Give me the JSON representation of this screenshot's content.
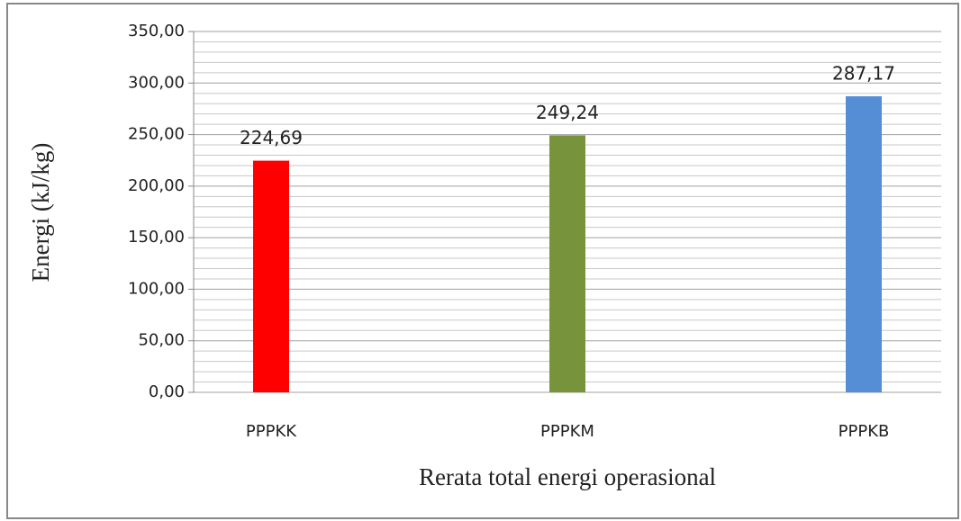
{
  "chart_data": {
    "type": "bar",
    "xlabel": "Rerata total energi operasional",
    "ylabel": "Energi (kJ/kg)",
    "categories": [
      "PPPKK",
      "PPPKM",
      "PPPKB"
    ],
    "values": [
      224.69,
      249.24,
      287.17
    ],
    "value_labels": [
      "224,69",
      "249,24",
      "287,17"
    ],
    "colors": [
      "#ff0000",
      "#77933c",
      "#558ed5"
    ],
    "ylim": [
      0,
      350
    ],
    "yticks": [
      {
        "value": 0,
        "label": "0,00"
      },
      {
        "value": 50,
        "label": "50,00"
      },
      {
        "value": 100,
        "label": "100,00"
      },
      {
        "value": 150,
        "label": "150,00"
      },
      {
        "value": 200,
        "label": "200,00"
      },
      {
        "value": 250,
        "label": "250,00"
      },
      {
        "value": 300,
        "label": "300,00"
      },
      {
        "value": 350,
        "label": "350,00"
      }
    ],
    "yminorticks": [
      10,
      20,
      30,
      40,
      60,
      70,
      80,
      90,
      110,
      120,
      130,
      140,
      160,
      170,
      180,
      190,
      210,
      220,
      230,
      240,
      260,
      270,
      280,
      290,
      310,
      320,
      330,
      340
    ],
    "grid": true
  }
}
